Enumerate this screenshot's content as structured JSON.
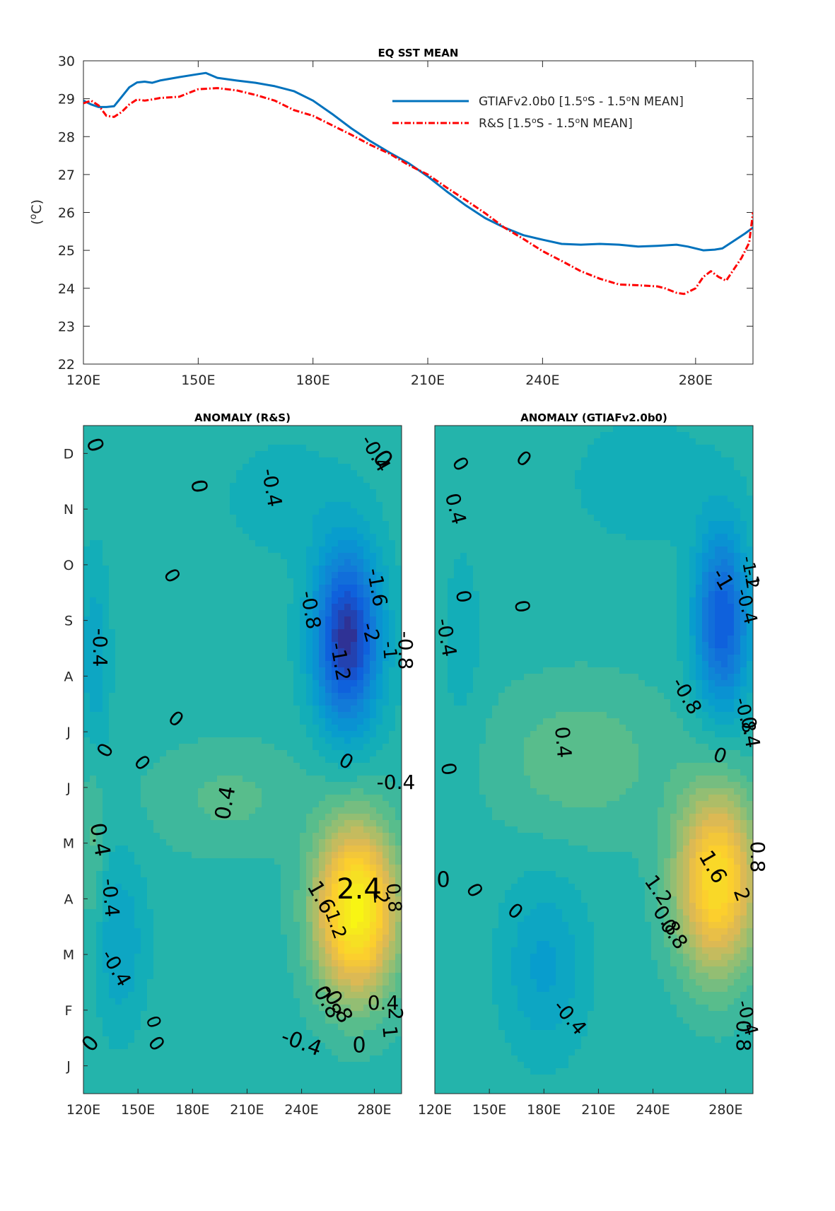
{
  "chart_data": [
    {
      "type": "line",
      "title": "EQ SST MEAN",
      "ylabel": "(°C)",
      "ylabel_parts": {
        "open": "(",
        "sup": "o",
        "unit": "C)"
      },
      "xlabel": "",
      "x_unit": "degrees east longitude",
      "xlim": [
        120,
        295
      ],
      "ylim": [
        22,
        30
      ],
      "xticks": [
        120,
        150,
        180,
        210,
        240,
        280
      ],
      "xtick_labels": [
        "120E",
        "150E",
        "180E",
        "210E",
        "240E",
        "280E"
      ],
      "yticks": [
        22,
        23,
        24,
        25,
        26,
        27,
        28,
        29,
        30
      ],
      "ytick_labels": [
        "22",
        "23",
        "24",
        "25",
        "26",
        "27",
        "28",
        "29",
        "30"
      ],
      "legend_position": "top-right",
      "grid": false,
      "series": [
        {
          "name": "GTIAFv2.0b0 [1.5°S - 1.5°N MEAN]",
          "name_parts": [
            "GTIAFv2.0b0 [1.5",
            "o",
            "S - 1.5",
            "o",
            "N MEAN]"
          ],
          "color": "#0072bd",
          "style": "solid",
          "x": [
            120,
            122,
            124,
            126,
            128,
            130,
            132,
            134,
            136,
            138,
            140,
            145,
            150,
            152,
            155,
            160,
            165,
            170,
            175,
            180,
            185,
            190,
            195,
            200,
            205,
            210,
            215,
            220,
            225,
            230,
            235,
            240,
            245,
            250,
            255,
            260,
            265,
            270,
            275,
            278,
            280,
            282,
            285,
            287,
            290,
            293,
            295
          ],
          "y": [
            28.95,
            28.85,
            28.78,
            28.78,
            28.8,
            29.05,
            29.3,
            29.43,
            29.45,
            29.42,
            29.48,
            29.57,
            29.65,
            29.68,
            29.55,
            29.48,
            29.42,
            29.33,
            29.2,
            28.95,
            28.6,
            28.22,
            27.88,
            27.58,
            27.3,
            26.95,
            26.55,
            26.18,
            25.85,
            25.6,
            25.4,
            25.28,
            25.17,
            25.15,
            25.17,
            25.15,
            25.1,
            25.12,
            25.15,
            25.1,
            25.05,
            25.0,
            25.02,
            25.05,
            25.25,
            25.45,
            25.6
          ]
        },
        {
          "name": "R&S [1.5°S - 1.5°N MEAN]",
          "name_parts": [
            "R&S [1.5",
            "o",
            "S - 1.5",
            "o",
            "N MEAN]"
          ],
          "color": "#ff0000",
          "style": "dash-dot",
          "x": [
            120,
            122,
            124,
            126,
            128,
            130,
            132,
            134,
            136,
            138,
            140,
            145,
            150,
            155,
            160,
            165,
            170,
            175,
            180,
            185,
            190,
            195,
            200,
            205,
            210,
            215,
            220,
            225,
            230,
            235,
            240,
            245,
            250,
            255,
            260,
            265,
            270,
            272,
            275,
            277,
            280,
            282,
            284,
            286,
            288,
            290,
            292,
            294,
            295
          ],
          "y": [
            28.88,
            28.95,
            28.82,
            28.55,
            28.52,
            28.65,
            28.85,
            28.98,
            28.95,
            28.98,
            29.02,
            29.05,
            29.25,
            29.28,
            29.22,
            29.1,
            28.95,
            28.7,
            28.55,
            28.3,
            28.05,
            27.78,
            27.55,
            27.25,
            27.0,
            26.65,
            26.32,
            25.98,
            25.6,
            25.3,
            24.98,
            24.72,
            24.45,
            24.25,
            24.1,
            24.08,
            24.05,
            24.0,
            23.88,
            23.85,
            24.0,
            24.3,
            24.45,
            24.3,
            24.2,
            24.5,
            24.8,
            25.2,
            26.0
          ]
        }
      ]
    },
    {
      "type": "heatmap",
      "subtype": "contour",
      "title": "ANOMALY (R&S)",
      "xlabel": "",
      "ylabel": "",
      "xlim": [
        120,
        295
      ],
      "x_unit": "degrees east longitude",
      "xtick_labels": [
        "120E",
        "150E",
        "180E",
        "210E",
        "240E",
        "280E"
      ],
      "ytick_labels_bottom_to_top": [
        "J",
        "F",
        "M",
        "A",
        "M",
        "J",
        "J",
        "A",
        "S",
        "O",
        "N",
        "D"
      ],
      "y_unit": "month (calendar year)",
      "colormap": "parula",
      "features": [
        {
          "kind": "warm",
          "lon": 270,
          "month": 3.8,
          "peak": 2.6
        },
        {
          "kind": "cold",
          "lon": 265,
          "month": 8.7,
          "peak": -2.1
        },
        {
          "kind": "cold",
          "lon": 126,
          "month": 8.2,
          "peak": -0.5
        },
        {
          "kind": "cold",
          "lon": 140,
          "month": 3.2,
          "peak": -0.5
        }
      ],
      "contour_labels": [
        "0",
        "0",
        "0",
        "0",
        "0",
        "0",
        "0",
        "0",
        "0",
        "0",
        "0",
        "0",
        "-0.4",
        "-0.4",
        "-0.4",
        "-0.4",
        "-0.4",
        "-0.4",
        "-0.4",
        "-0.8",
        "-0.8",
        "-0.8",
        "-1.2",
        "-1.6",
        "-2",
        "-1",
        "0.4",
        "0.4",
        "0.4",
        "0.8",
        "0.8",
        "1.6",
        "1.2",
        "2",
        "2.4",
        "1",
        "2"
      ]
    },
    {
      "type": "heatmap",
      "subtype": "contour",
      "title": "ANOMALY (GTIAFv2.0b0)",
      "xlabel": "",
      "ylabel": "",
      "xlim": [
        120,
        295
      ],
      "x_unit": "degrees east longitude",
      "xtick_labels": [
        "120E",
        "150E",
        "180E",
        "210E",
        "240E",
        "280E"
      ],
      "y_unit": "month (calendar year)",
      "colormap": "parula",
      "features": [
        {
          "kind": "warm",
          "lon": 275,
          "month": 4.3,
          "peak": 2.2
        },
        {
          "kind": "cold",
          "lon": 278,
          "month": 9.0,
          "peak": -1.6
        },
        {
          "kind": "cold",
          "lon": 180,
          "month": 2.8,
          "peak": -0.55
        },
        {
          "kind": "cold",
          "lon": 240,
          "month": 11.6,
          "peak": -0.3
        }
      ],
      "contour_labels": [
        "0",
        "0",
        "0",
        "0",
        "0",
        "0",
        "0",
        "0",
        "0",
        "0.4",
        "0.4",
        "-0.4",
        "-0.4",
        "-0.4",
        "-0.4",
        "-0.8",
        "-0.8",
        "-1",
        "-1",
        "-1.2",
        "0.4",
        "0.8",
        "0.8",
        "0.8",
        "1.6",
        "1.2",
        "2",
        "0.8"
      ]
    }
  ]
}
